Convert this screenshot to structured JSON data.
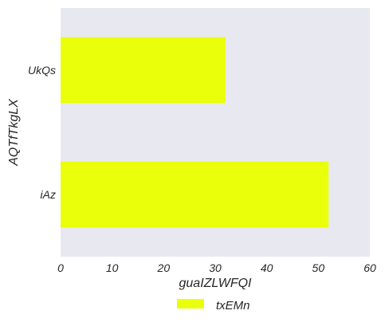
{
  "chart_data": {
    "type": "bar",
    "orientation": "horizontal",
    "categories": [
      "UkQs",
      "iAz"
    ],
    "series": [
      {
        "name": "txEMn",
        "values": [
          32,
          52
        ],
        "color": "#eaff0a"
      }
    ],
    "xlabel": "guaIZLWFQI",
    "ylabel": "AQTfTkgLX",
    "xlim": [
      0,
      60
    ],
    "xticks": [
      0,
      10,
      20,
      30,
      40,
      50,
      60
    ],
    "grid": false,
    "background": "#e8e8f1",
    "legend_position": "bottom"
  }
}
